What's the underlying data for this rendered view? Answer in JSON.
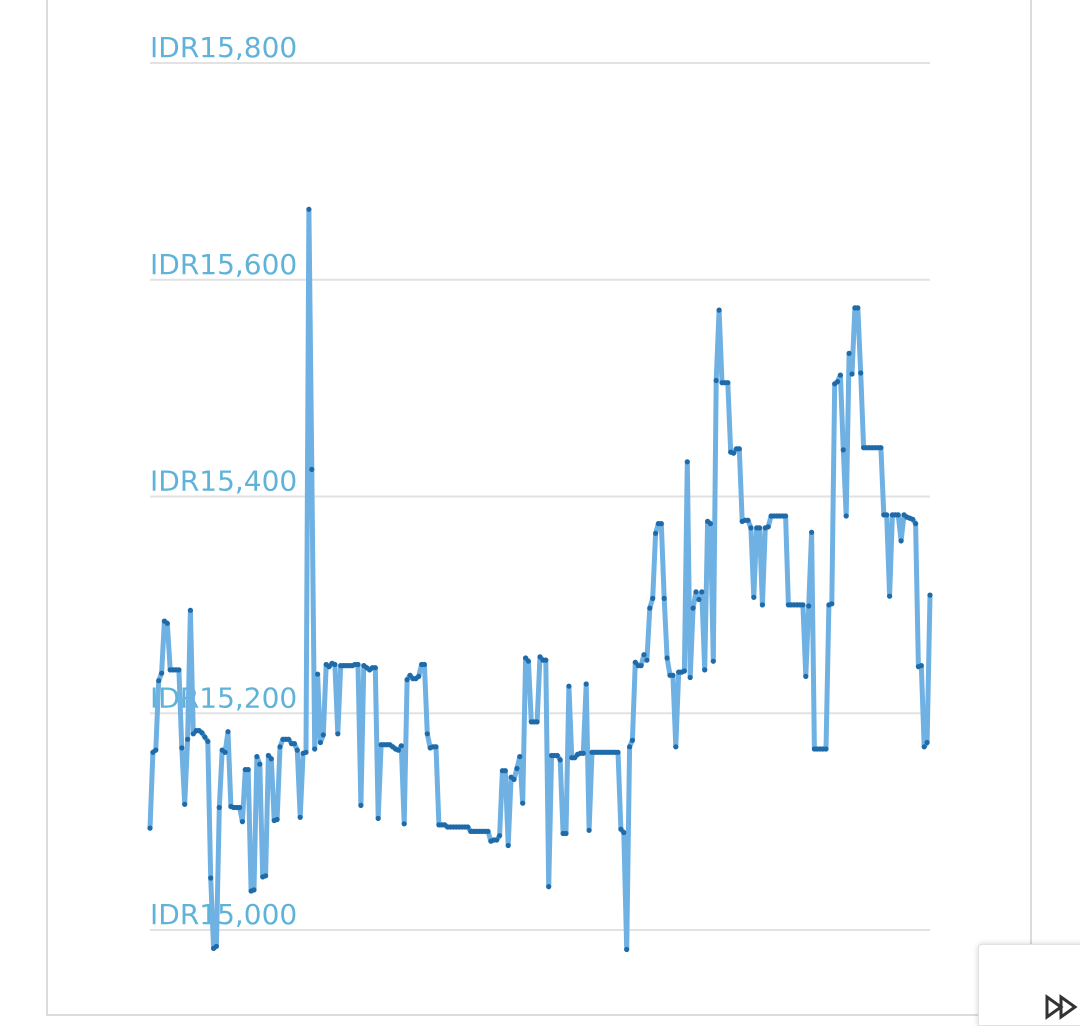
{
  "colors": {
    "line": "#6fb1e3",
    "point": "#1f6aa8",
    "grid": "#e2e2e2",
    "tick": "#5fb3d9"
  },
  "chart_data": {
    "type": "line",
    "title": "",
    "xlabel": "",
    "ylabel": "",
    "ylim": [
      15000,
      15800
    ],
    "yticks": [
      15000,
      15200,
      15400,
      15600,
      15800
    ],
    "ytick_labels": [
      "IDR15,000",
      "IDR15,200",
      "IDR15,400",
      "IDR15,600",
      "IDR15,800"
    ],
    "grid": true,
    "legend": "none",
    "series": [
      {
        "values": [
          15094,
          15164,
          15166,
          15230,
          15237,
          15285,
          15283,
          15240,
          15240,
          15240,
          15240,
          15168,
          15116,
          15176,
          15295,
          15181,
          15184,
          15184,
          15182,
          15178,
          15174,
          15048,
          14983,
          14985,
          15113,
          15166,
          15164,
          15183,
          15114,
          15113,
          15113,
          15113,
          15100,
          15148,
          15148,
          15036,
          15037,
          15160,
          15153,
          15049,
          15050,
          15161,
          15158,
          15101,
          15102,
          15169,
          15176,
          15176,
          15176,
          15172,
          15172,
          15166,
          15104,
          15163,
          15164,
          15665,
          15425,
          15167,
          15236,
          15173,
          15180,
          15245,
          15243,
          15246,
          15245,
          15181,
          15244,
          15244,
          15244,
          15244,
          15244,
          15245,
          15245,
          15115,
          15244,
          15242,
          15240,
          15242,
          15242,
          15103,
          15171,
          15171,
          15171,
          15171,
          15169,
          15167,
          15166,
          15170,
          15098,
          15231,
          15235,
          15232,
          15232,
          15234,
          15245,
          15245,
          15181,
          15168,
          15169,
          15169,
          15097,
          15097,
          15097,
          15095,
          15095,
          15095,
          15095,
          15095,
          15095,
          15095,
          15095,
          15091,
          15091,
          15091,
          15091,
          15091,
          15091,
          15091,
          15082,
          15083,
          15083,
          15087,
          15147,
          15147,
          15078,
          15141,
          15139,
          15149,
          15160,
          15117,
          15251,
          15248,
          15192,
          15192,
          15192,
          15252,
          15249,
          15249,
          15040,
          15161,
          15161,
          15161,
          15157,
          15089,
          15089,
          15225,
          15159,
          15159,
          15162,
          15163,
          15163,
          15227,
          15092,
          15164,
          15164,
          15164,
          15164,
          15164,
          15164,
          15164,
          15164,
          15164,
          15164,
          15093,
          15090,
          14982,
          15169,
          15175,
          15247,
          15244,
          15244,
          15254,
          15249,
          15297,
          15306,
          15366,
          15375,
          15375,
          15306,
          15251,
          15235,
          15235,
          15169,
          15238,
          15238,
          15239,
          15432,
          15233,
          15297,
          15312,
          15305,
          15312,
          15240,
          15377,
          15375,
          15248,
          15507,
          15572,
          15505,
          15505,
          15505,
          15441,
          15440,
          15444,
          15444,
          15377,
          15378,
          15378,
          15371,
          15307,
          15371,
          15371,
          15300,
          15371,
          15372,
          15382,
          15382,
          15382,
          15382,
          15382,
          15382,
          15300,
          15300,
          15300,
          15300,
          15300,
          15300,
          15234,
          15299,
          15367,
          15167,
          15167,
          15167,
          15167,
          15167,
          15300,
          15301,
          15504,
          15506,
          15512,
          15443,
          15382,
          15532,
          15513,
          15574,
          15574,
          15514,
          15445,
          15445,
          15445,
          15445,
          15445,
          15445,
          15445,
          15383,
          15383,
          15308,
          15383,
          15383,
          15383,
          15359,
          15383,
          15381,
          15380,
          15379,
          15375,
          15243,
          15244,
          15169,
          15173,
          15309
        ]
      }
    ]
  }
}
